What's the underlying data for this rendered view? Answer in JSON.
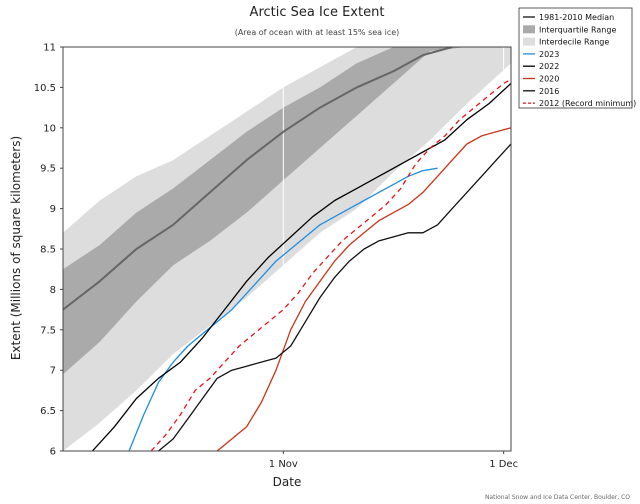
{
  "chart_data": {
    "type": "line",
    "title": "Arctic Sea Ice Extent",
    "subtitle": "(Area of ocean with at least 15% sea ice)",
    "xlabel": "Date",
    "ylabel": "Extent (Millions of square kilometers)",
    "x_unit": "day of year",
    "xlim": [
      275,
      336
    ],
    "ylim": [
      6,
      11
    ],
    "yticks": [
      6,
      6.5,
      7,
      7.5,
      8,
      8.5,
      9,
      9.5,
      10,
      10.5,
      11
    ],
    "xticks": [
      {
        "x": 305,
        "label": "1 Nov"
      },
      {
        "x": 335,
        "label": "1 Dec"
      }
    ],
    "grid": "vertical",
    "legend_position": "top-right outside",
    "credit": "National Snow and Ice Data Center, Boulder, CO",
    "bands": [
      {
        "name": "Interdecile Range",
        "color": "#dddddd",
        "x": [
          275,
          280,
          285,
          290,
          295,
          300,
          305,
          310,
          315,
          320,
          325,
          330,
          336
        ],
        "lower": [
          6.0,
          6.35,
          6.75,
          7.2,
          7.55,
          7.9,
          8.3,
          8.7,
          9.0,
          9.45,
          9.85,
          10.3,
          10.8
        ],
        "upper": [
          8.7,
          9.1,
          9.4,
          9.6,
          9.9,
          10.2,
          10.5,
          10.75,
          11.0,
          11.0,
          11.0,
          11.0,
          11.0
        ]
      },
      {
        "name": "Interquartile Range",
        "color": "#aaaaaa",
        "x": [
          275,
          280,
          285,
          290,
          295,
          300,
          305,
          310,
          315,
          320,
          325,
          330,
          336
        ],
        "lower": [
          6.95,
          7.35,
          7.85,
          8.3,
          8.6,
          8.95,
          9.35,
          9.75,
          10.15,
          10.55,
          10.95,
          11.0,
          11.0
        ],
        "upper": [
          8.25,
          8.55,
          8.95,
          9.25,
          9.6,
          9.95,
          10.25,
          10.5,
          10.8,
          11.0,
          11.0,
          11.0,
          11.0
        ]
      }
    ],
    "series": [
      {
        "name": "1981-2010 Median",
        "color": "#666666",
        "width": 2,
        "x": [
          275,
          280,
          285,
          290,
          295,
          300,
          305,
          310,
          315,
          320,
          324,
          328
        ],
        "y": [
          7.75,
          8.1,
          8.5,
          8.8,
          9.2,
          9.6,
          9.95,
          10.25,
          10.5,
          10.7,
          10.9,
          11.0
        ]
      },
      {
        "name": "2023",
        "color": "#1f8ee0",
        "width": 1.3,
        "x": [
          284,
          286,
          288,
          290,
          292,
          294,
          296,
          298,
          300,
          302,
          304,
          306,
          308,
          310,
          312,
          314,
          316,
          318,
          320,
          322,
          324,
          326
        ],
        "y": [
          6.0,
          6.45,
          6.85,
          7.1,
          7.3,
          7.45,
          7.6,
          7.75,
          7.95,
          8.15,
          8.35,
          8.5,
          8.65,
          8.8,
          8.9,
          9.0,
          9.1,
          9.2,
          9.3,
          9.4,
          9.47,
          9.5
        ]
      },
      {
        "name": "2022",
        "color": "#000000",
        "width": 1.3,
        "x": [
          279,
          282,
          285,
          288,
          291,
          294,
          297,
          300,
          303,
          306,
          309,
          312,
          315,
          318,
          321,
          324,
          327,
          330,
          333,
          336
        ],
        "y": [
          6.0,
          6.3,
          6.65,
          6.9,
          7.1,
          7.4,
          7.75,
          8.1,
          8.4,
          8.65,
          8.9,
          9.1,
          9.25,
          9.4,
          9.55,
          9.7,
          9.85,
          10.1,
          10.3,
          10.55
        ]
      },
      {
        "name": "2020",
        "color": "#c8341a",
        "width": 1.3,
        "x": [
          296,
          300,
          302,
          304,
          306,
          308,
          310,
          312,
          314,
          316,
          318,
          320,
          322,
          324,
          326,
          328,
          330,
          332,
          334,
          336
        ],
        "y": [
          6.0,
          6.3,
          6.6,
          7.0,
          7.5,
          7.85,
          8.1,
          8.35,
          8.55,
          8.7,
          8.85,
          8.95,
          9.05,
          9.2,
          9.4,
          9.6,
          9.8,
          9.9,
          9.95,
          10.0
        ]
      },
      {
        "name": "2016",
        "color": "#111111",
        "width": 1.3,
        "x": [
          288,
          290,
          292,
          294,
          296,
          298,
          300,
          302,
          304,
          306,
          308,
          310,
          312,
          314,
          316,
          318,
          320,
          322,
          324,
          326,
          328,
          330,
          332,
          334,
          336
        ],
        "y": [
          6.0,
          6.15,
          6.4,
          6.65,
          6.9,
          7.0,
          7.05,
          7.1,
          7.15,
          7.3,
          7.6,
          7.9,
          8.15,
          8.35,
          8.5,
          8.6,
          8.65,
          8.7,
          8.7,
          8.8,
          9.0,
          9.2,
          9.4,
          9.6,
          9.8
        ]
      },
      {
        "name": "2012 (Record minimum)",
        "color": "#e8121b",
        "width": 1.3,
        "dashed": true,
        "x": [
          287,
          289,
          291,
          293,
          295,
          297,
          299,
          301,
          303,
          305,
          307,
          309,
          311,
          313,
          315,
          317,
          319,
          321,
          323,
          325,
          327,
          329,
          331,
          333,
          335,
          336
        ],
        "y": [
          6.0,
          6.2,
          6.45,
          6.75,
          6.9,
          7.1,
          7.3,
          7.45,
          7.6,
          7.75,
          7.95,
          8.2,
          8.4,
          8.6,
          8.75,
          8.9,
          9.05,
          9.25,
          9.55,
          9.75,
          9.9,
          10.1,
          10.25,
          10.4,
          10.55,
          10.6
        ]
      }
    ],
    "legend": [
      {
        "label": "1981-2010 Median",
        "style": "line",
        "color": "#666666"
      },
      {
        "label": "Interquartile Range",
        "style": "box",
        "color": "#aaaaaa"
      },
      {
        "label": "Interdecile Range",
        "style": "box",
        "color": "#dddddd"
      },
      {
        "label": "2023",
        "style": "line",
        "color": "#1f8ee0"
      },
      {
        "label": "2022",
        "style": "line",
        "color": "#000000"
      },
      {
        "label": "2020",
        "style": "line",
        "color": "#c8341a"
      },
      {
        "label": "2016",
        "style": "line",
        "color": "#111111"
      },
      {
        "label": "2012 (Record minimum)",
        "style": "dashed",
        "color": "#e8121b"
      }
    ]
  }
}
